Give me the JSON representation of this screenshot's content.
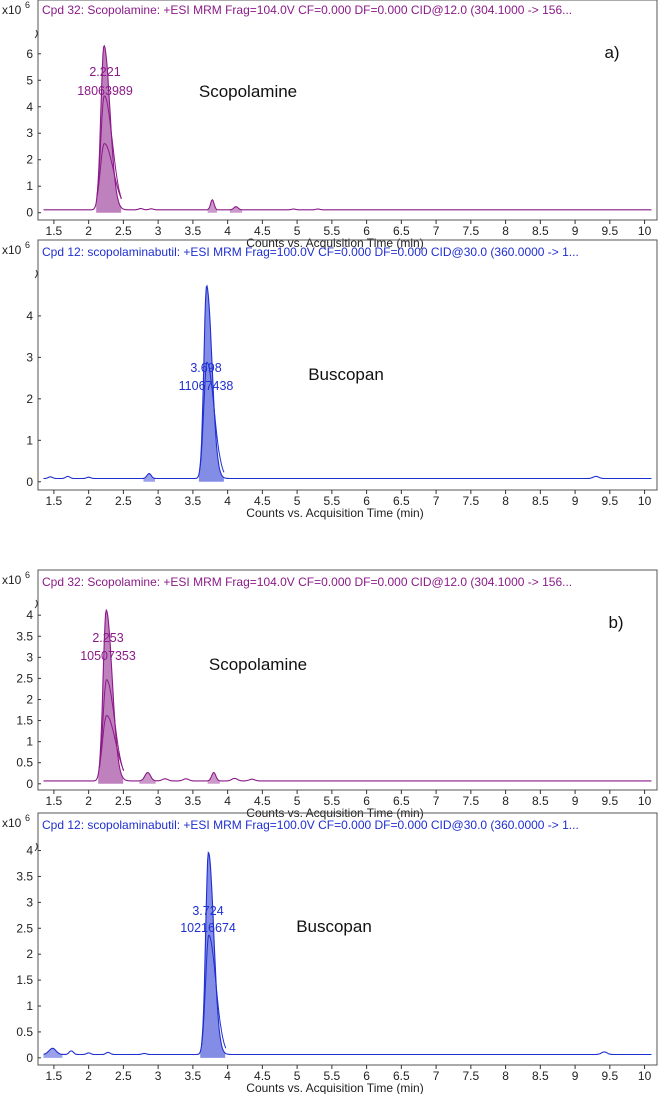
{
  "chart_data": [
    {
      "type": "area",
      "color": "#8b1a89",
      "title": "Cpd 32: Scopolamine: +ESI MRM Frag=104.0V CF=0.000 DF=0.000 CID@12.0 (304.1000 -> 156...",
      "panel_label": "a)",
      "compound_label": "Scopolamine",
      "y_multiplier": "x10",
      "y_exponent": "6",
      "xlabel": "Counts vs. Acquisition Time (min)",
      "xlim": [
        1.3,
        10.15
      ],
      "ylim": [
        -0.2,
        7.2
      ],
      "x_ticks": [
        "1.5",
        "2",
        "2.5",
        "3",
        "3.5",
        "4",
        "4.5",
        "5",
        "5.5",
        "6",
        "6.5",
        "7",
        "7.5",
        "8",
        "8.5",
        "9",
        "9.5",
        "10"
      ],
      "y_ticks": [
        "0",
        "1",
        "2",
        "3",
        "4",
        "5",
        "6"
      ],
      "peak": {
        "rt": "2.221",
        "area": "18063989",
        "x": 2.221,
        "height": 6.2,
        "width": 0.045
      },
      "peak_secondary_heights": [
        4.3,
        2.5
      ],
      "minor_peaks": [
        {
          "x": 2.75,
          "h": 0.05,
          "w": 0.03
        },
        {
          "x": 2.9,
          "h": 0.04,
          "w": 0.03
        },
        {
          "x": 3.78,
          "h": 0.38,
          "w": 0.025
        },
        {
          "x": 4.12,
          "h": 0.12,
          "w": 0.03
        },
        {
          "x": 4.95,
          "h": 0.03,
          "w": 0.03
        },
        {
          "x": 5.3,
          "h": 0.03,
          "w": 0.03
        }
      ]
    },
    {
      "type": "area",
      "color": "#1f2fd0",
      "title": "Cpd 12: scopolaminabutil: +ESI MRM Frag=100.0V CF=0.000 DF=0.000 CID@30.0 (360.0000 -> 1...",
      "panel_label": "",
      "compound_label": "Buscopan",
      "y_multiplier": "x10",
      "y_exponent": "6",
      "xlabel": "Counts vs. Acquisition Time (min)",
      "xlim": [
        1.3,
        10.15
      ],
      "ylim": [
        -0.15,
        5.3
      ],
      "x_ticks": [
        "1.5",
        "2",
        "2.5",
        "3",
        "3.5",
        "4",
        "4.5",
        "5",
        "5.5",
        "6",
        "6.5",
        "7",
        "7.5",
        "8",
        "8.5",
        "9",
        "9.5",
        "10"
      ],
      "y_ticks": [
        "0",
        "1",
        "2",
        "3",
        "4"
      ],
      "peak": {
        "rt": "3.698",
        "area": "11067438",
        "x": 3.698,
        "height": 4.65,
        "width": 0.04
      },
      "peak_secondary_heights": [
        2.8
      ],
      "minor_peaks": [
        {
          "x": 1.45,
          "h": 0.04,
          "w": 0.03
        },
        {
          "x": 1.7,
          "h": 0.05,
          "w": 0.03
        },
        {
          "x": 2.0,
          "h": 0.03,
          "w": 0.03
        },
        {
          "x": 2.87,
          "h": 0.12,
          "w": 0.03
        },
        {
          "x": 9.3,
          "h": 0.05,
          "w": 0.04
        }
      ]
    },
    {
      "type": "area",
      "color": "#8b1a89",
      "title": "Cpd 32: Scopolamine: +ESI MRM Frag=104.0V CF=0.000 DF=0.000 CID@12.0 (304.1000 -> 156...",
      "panel_label": "b)",
      "compound_label": "Scopolamine",
      "y_multiplier": "x10",
      "y_exponent": "6",
      "xlabel": "Counts vs. Acquisition Time (min)",
      "xlim": [
        1.3,
        10.15
      ],
      "ylim": [
        -0.1,
        4.55
      ],
      "x_ticks": [
        "1.5",
        "2",
        "2.5",
        "3",
        "3.5",
        "4",
        "4.5",
        "5",
        "5.5",
        "6",
        "6.5",
        "7",
        "7.5",
        "8",
        "8.5",
        "9",
        "9.5",
        "10"
      ],
      "y_ticks": [
        "0",
        "0.5",
        "1",
        "1.5",
        "2",
        "2.5",
        "3",
        "3.5",
        "4"
      ],
      "peak": {
        "rt": "2.253",
        "area": "10507353",
        "x": 2.253,
        "height": 4.05,
        "width": 0.045
      },
      "peak_secondary_heights": [
        2.4,
        1.55
      ],
      "minor_peaks": [
        {
          "x": 2.85,
          "h": 0.2,
          "w": 0.04
        },
        {
          "x": 3.1,
          "h": 0.05,
          "w": 0.04
        },
        {
          "x": 3.4,
          "h": 0.05,
          "w": 0.04
        },
        {
          "x": 3.8,
          "h": 0.2,
          "w": 0.03
        },
        {
          "x": 4.1,
          "h": 0.06,
          "w": 0.04
        },
        {
          "x": 4.35,
          "h": 0.04,
          "w": 0.04
        }
      ]
    },
    {
      "type": "area",
      "color": "#1f2fd0",
      "title": "Cpd 12: scopolaminabutil: +ESI MRM Frag=100.0V CF=0.000 DF=0.000 CID@30.0 (360.0000 -> 1...",
      "panel_label": "",
      "compound_label": "Buscopan",
      "y_multiplier": "x10",
      "y_exponent": "6",
      "xlabel": "Counts vs. Acquisition Time (min)",
      "xlim": [
        1.3,
        10.15
      ],
      "ylim": [
        -0.1,
        4.3
      ],
      "x_ticks": [
        "1.5",
        "2",
        "2.5",
        "3",
        "3.5",
        "4",
        "4.5",
        "5",
        "5.5",
        "6",
        "6.5",
        "7",
        "7.5",
        "8",
        "8.5",
        "9",
        "9.5",
        "10"
      ],
      "y_ticks": [
        "0",
        "0.5",
        "1",
        "1.5",
        "2",
        "2.5",
        "3",
        "3.5",
        "4"
      ],
      "peak": {
        "rt": "3.724",
        "area": "10216674",
        "x": 3.724,
        "height": 3.9,
        "width": 0.04
      },
      "peak_secondary_heights": [
        2.3
      ],
      "minor_peaks": [
        {
          "x": 1.48,
          "h": 0.12,
          "w": 0.05
        },
        {
          "x": 1.75,
          "h": 0.07,
          "w": 0.03
        },
        {
          "x": 2.0,
          "h": 0.03,
          "w": 0.03
        },
        {
          "x": 2.28,
          "h": 0.04,
          "w": 0.03
        },
        {
          "x": 2.8,
          "h": 0.02,
          "w": 0.03
        },
        {
          "x": 9.42,
          "h": 0.05,
          "w": 0.04
        }
      ]
    }
  ]
}
